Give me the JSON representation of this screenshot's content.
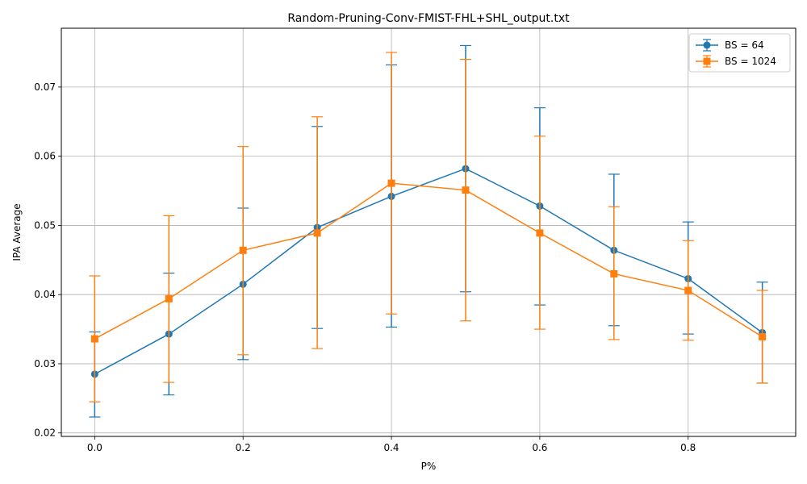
{
  "chart_data": {
    "type": "line",
    "title": "Random-Pruning-Conv-FMIST-FHL+SHL_output.txt",
    "xlabel": "P%",
    "ylabel": "IPA Average",
    "xlim": [
      -0.045,
      0.945
    ],
    "ylim": [
      0.0195,
      0.0785
    ],
    "x_ticks": [
      "0.0",
      "0.2",
      "0.4",
      "0.6",
      "0.8"
    ],
    "x_tick_values": [
      0.0,
      0.2,
      0.4,
      0.6,
      0.8
    ],
    "y_ticks": [
      "0.02",
      "0.03",
      "0.04",
      "0.05",
      "0.06",
      "0.07"
    ],
    "y_tick_values": [
      0.02,
      0.03,
      0.04,
      0.05,
      0.06,
      0.07
    ],
    "grid": true,
    "legend_position": "top-right",
    "x": [
      0.0,
      0.1,
      0.2,
      0.3,
      0.4,
      0.5,
      0.6,
      0.7,
      0.8,
      0.9
    ],
    "series": [
      {
        "name": "BS = 64",
        "color": "#1f77b4",
        "marker": "circle",
        "values": [
          0.0285,
          0.0343,
          0.0415,
          0.0497,
          0.0542,
          0.0582,
          0.0528,
          0.0464,
          0.0423,
          0.0345
        ],
        "err_low": [
          0.0223,
          0.0255,
          0.0306,
          0.0351,
          0.0353,
          0.0404,
          0.0385,
          0.0355,
          0.0343,
          0.0272
        ],
        "err_high": [
          0.0346,
          0.0431,
          0.0525,
          0.0643,
          0.0732,
          0.076,
          0.067,
          0.0574,
          0.0505,
          0.0418
        ]
      },
      {
        "name": "BS = 1024",
        "color": "#ff7f0e",
        "marker": "square",
        "values": [
          0.0336,
          0.0394,
          0.0464,
          0.0489,
          0.0561,
          0.0551,
          0.0489,
          0.043,
          0.0406,
          0.0339
        ],
        "err_low": [
          0.0245,
          0.0273,
          0.0313,
          0.0322,
          0.0372,
          0.0362,
          0.035,
          0.0335,
          0.0334,
          0.0272
        ],
        "err_high": [
          0.0427,
          0.0514,
          0.0614,
          0.0657,
          0.075,
          0.074,
          0.0629,
          0.0527,
          0.0478,
          0.0406
        ]
      }
    ]
  }
}
